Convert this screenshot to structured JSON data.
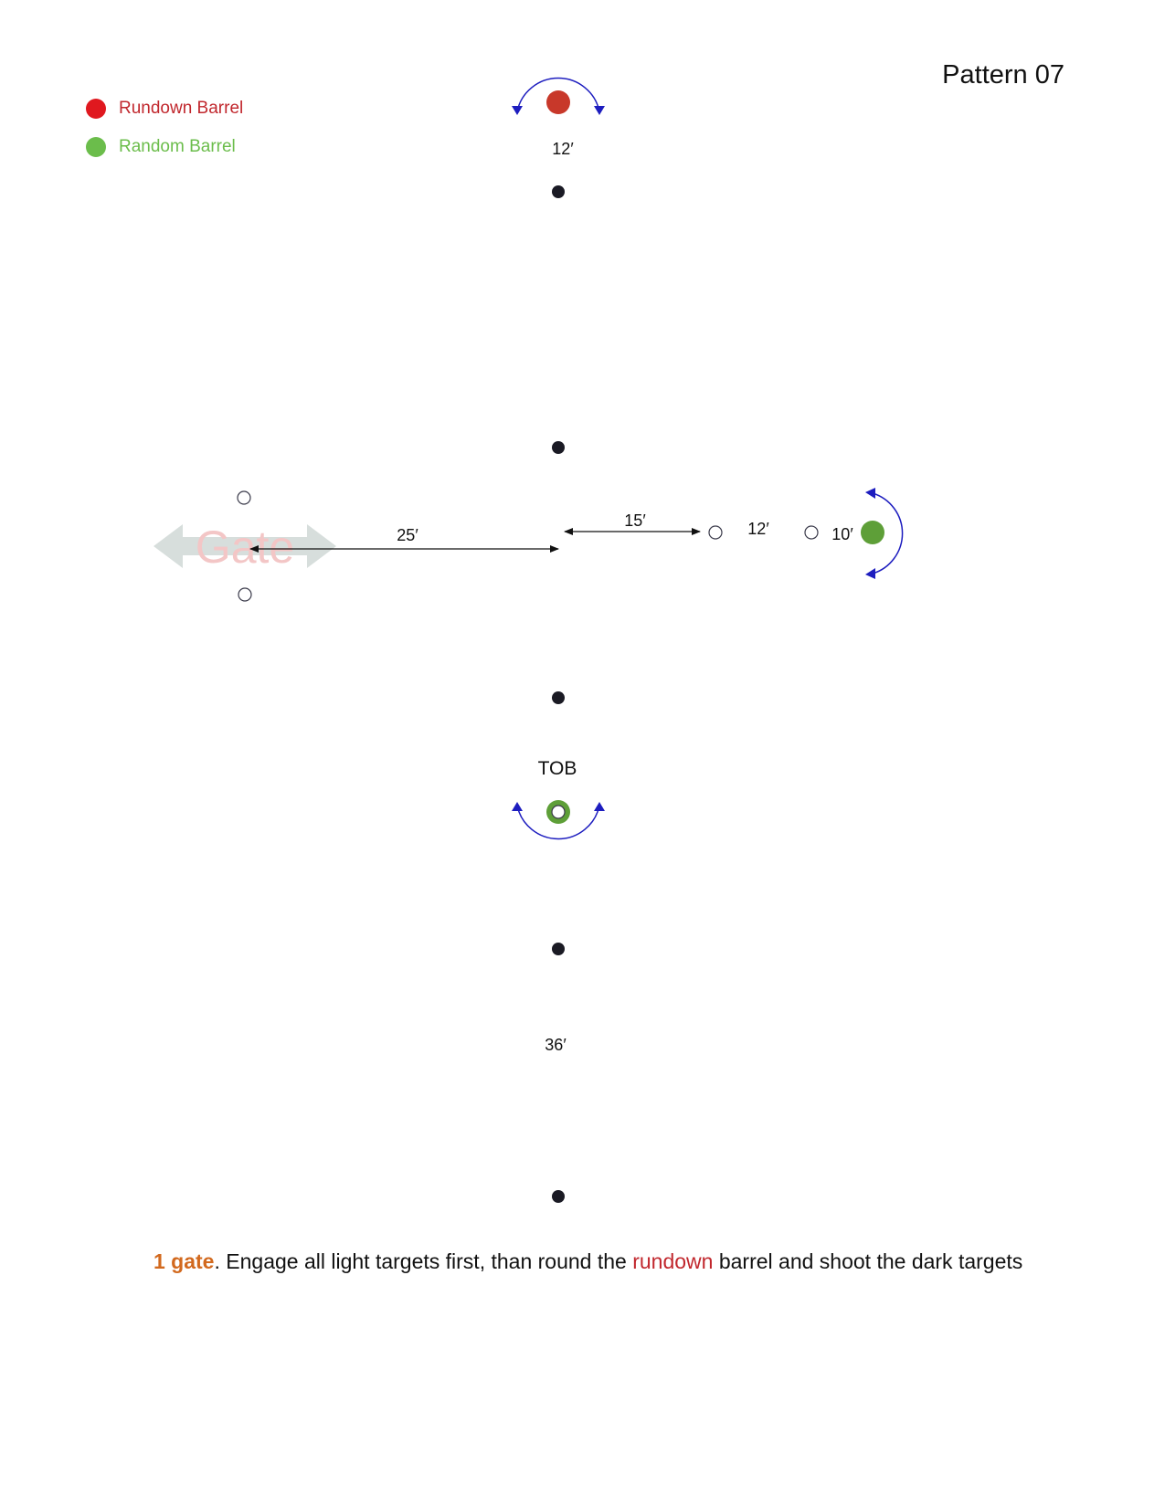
{
  "title": "Pattern 07",
  "legend": {
    "items": [
      {
        "label": "Rundown Barrel",
        "swatch_color": "#e0181f",
        "text_color": "#c1272d"
      },
      {
        "label": "Random Barrel",
        "swatch_color": "#6bbd4b",
        "text_color": "#6bbd4b"
      }
    ]
  },
  "diagram": {
    "dimensions": {
      "top_barrel": "12′",
      "gate_span": "25′",
      "center_right": "15′",
      "right_pair": "12′",
      "random_barrel": "10′",
      "bottom_run": "36′"
    },
    "tob_label": "TOB",
    "gate_label": "Gate",
    "colors": {
      "rundown_barrel": "#c8382a",
      "random_barrel": "#5e9f38",
      "dark_target": "#1a1a24",
      "light_target_stroke": "#3a3a4a",
      "turn_arrow": "#1d1dbf",
      "gate_arrow": "#d5dcda",
      "highlight": "#d2691e",
      "rundown_word": "#c1272d"
    },
    "icons": {
      "turn": "curved-arrow-icon",
      "gate": "double-arrow-icon"
    }
  },
  "instruction": {
    "gate_count": "1 gate",
    "part1": ". Engage all light targets first, than round the ",
    "rundown_word": "rundown",
    "part2": " barrel and shoot the dark targets"
  }
}
